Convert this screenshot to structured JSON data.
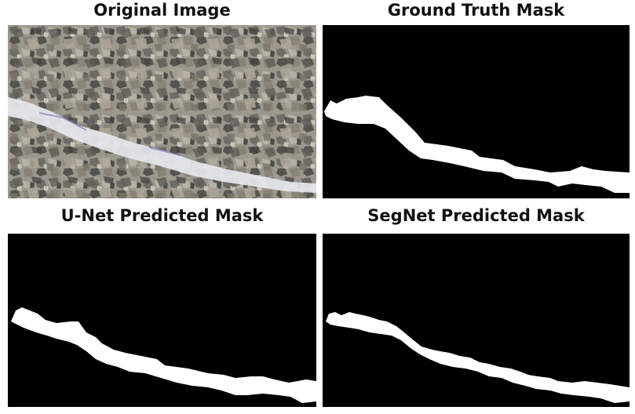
{
  "panels": {
    "original": {
      "title": "Original Image"
    },
    "ground_truth": {
      "title": "Ground Truth Mask"
    },
    "unet": {
      "title": "U-Net Predicted Mask"
    },
    "segnet": {
      "title": "SegNet Predicted Mask"
    }
  },
  "colors": {
    "mask_background": "#000000",
    "mask_foreground": "#ffffff",
    "gravel_base": "#8c8a80",
    "crack": "#e9ebf0"
  }
}
